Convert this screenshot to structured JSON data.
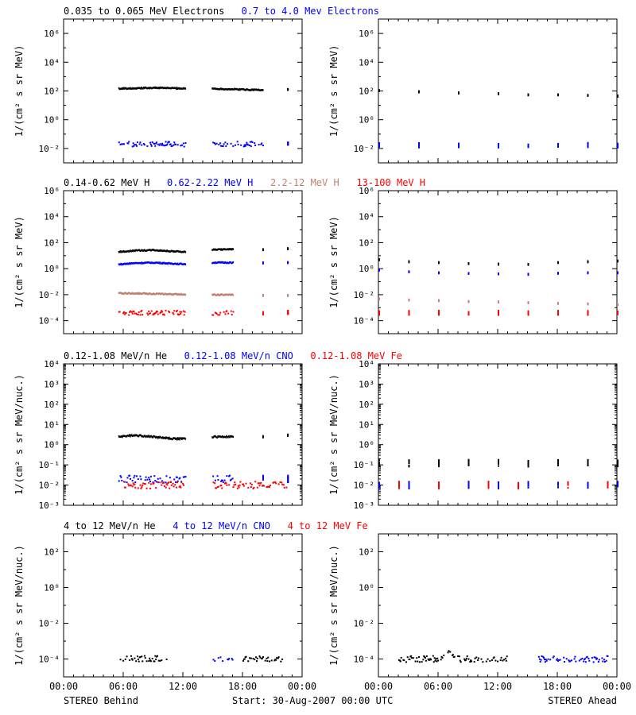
{
  "colors": {
    "black": "#000000",
    "blue": "#0000ff",
    "tan": "#c08070",
    "red": "#ff0000",
    "background": "#ffffff"
  },
  "footer": {
    "left": "STEREO Behind",
    "center": "Start: 30-Aug-2007 00:00 UTC",
    "right": "STEREO Ahead"
  },
  "x_axis": {
    "ticks": [
      0,
      6,
      12,
      18,
      24
    ],
    "tick_labels": [
      "00:00",
      "06:00",
      "12:00",
      "18:00",
      "00:00"
    ],
    "unit": "hours"
  },
  "chart_data": [
    {
      "type": "scatter",
      "row": 1,
      "spacecraft": "STEREO Behind",
      "legend": [
        {
          "text": "0.035 to 0.065 MeV Electrons",
          "color": "#000000"
        },
        {
          "text": "0.7 to 4.0 Mev Electrons",
          "color": "#0000ff"
        }
      ],
      "ylabel": "1/(cm² s sr MeV)",
      "yscale": "log",
      "ylim": [
        0.001,
        10000000
      ],
      "ytick_exponents": [
        -2,
        0,
        2,
        4,
        6
      ],
      "xlim": [
        0,
        24
      ],
      "series": [
        {
          "name": "0.035 to 0.065 MeV Electrons",
          "color": "#000000",
          "style": "line",
          "x": [
            5.5,
            7,
            9,
            11,
            12.2,
            14.9,
            16,
            18,
            20,
            22.5
          ],
          "y": [
            150,
            160,
            170,
            160,
            150,
            150,
            140,
            130,
            120,
            130
          ]
        },
        {
          "name": "0.7 to 4.0 Mev Electrons",
          "color": "#0000ff",
          "style": "dots",
          "x": [
            5.5,
            7,
            9,
            11,
            12.2,
            14.9,
            16,
            18,
            20,
            22.5
          ],
          "y": [
            0.02,
            0.02,
            0.02,
            0.02,
            0.02,
            0.02,
            0.02,
            0.02,
            0.02,
            0.02
          ]
        }
      ]
    },
    {
      "type": "scatter",
      "row": 1,
      "spacecraft": "STEREO Ahead",
      "legend": [],
      "ylabel": "1/(cm² s sr MeV)",
      "yscale": "log",
      "ylim": [
        0.001,
        10000000
      ],
      "ytick_exponents": [
        -2,
        0,
        2,
        4,
        6
      ],
      "xlim": [
        0,
        24
      ],
      "series": [
        {
          "name": "0.035 to 0.065 MeV Electrons",
          "color": "#000000",
          "style": "line",
          "x": [
            0,
            4,
            8,
            12,
            15,
            18,
            21,
            24
          ],
          "y": [
            110,
            90,
            75,
            65,
            55,
            55,
            50,
            45
          ]
        },
        {
          "name": "0.7 to 4.0 Mev Electrons",
          "color": "#0000ff",
          "style": "dots",
          "x": [
            0,
            4,
            8,
            12,
            15,
            18,
            21,
            24
          ],
          "y": [
            0.017,
            0.017,
            0.017,
            0.017,
            0.017,
            0.017,
            0.017,
            0.017
          ]
        }
      ]
    },
    {
      "type": "scatter",
      "row": 2,
      "spacecraft": "STEREO Behind",
      "legend": [
        {
          "text": "0.14-0.62 MeV H",
          "color": "#000000"
        },
        {
          "text": "0.62-2.22 MeV H",
          "color": "#0000ff"
        },
        {
          "text": "2.2-12 MeV H",
          "color": "#c08070"
        },
        {
          "text": "13-100 MeV H",
          "color": "#ff0000"
        }
      ],
      "ylabel": "1/(cm² s sr MeV)",
      "yscale": "log",
      "ylim": [
        1e-05,
        1000000
      ],
      "ytick_exponents": [
        -4,
        -2,
        0,
        2,
        4,
        6
      ],
      "xlim": [
        0,
        24
      ],
      "series": [
        {
          "name": "0.14-0.62 MeV H",
          "color": "#000000",
          "style": "line",
          "x": [
            5.5,
            7,
            9,
            11,
            12.2,
            14.9,
            17,
            20,
            22.5
          ],
          "y": [
            20,
            25,
            28,
            22,
            20,
            30,
            32,
            30,
            35
          ]
        },
        {
          "name": "0.62-2.22 MeV H",
          "color": "#0000ff",
          "style": "line",
          "x": [
            5.5,
            7,
            9,
            11,
            12.2,
            14.9,
            17,
            20,
            22.5
          ],
          "y": [
            2.2,
            2.7,
            3,
            2.5,
            2.3,
            3,
            3,
            2.8,
            3
          ]
        },
        {
          "name": "2.2-12 MeV H",
          "color": "#c08070",
          "style": "line",
          "x": [
            5.5,
            7,
            9,
            11,
            12.2,
            14.9,
            17,
            20,
            22.5
          ],
          "y": [
            0.013,
            0.013,
            0.012,
            0.011,
            0.011,
            0.01,
            0.01,
            0.009,
            0.009
          ]
        },
        {
          "name": "13-100 MeV H",
          "color": "#ff0000",
          "style": "dots",
          "x": [
            5.5,
            7,
            9,
            11,
            12.2,
            14.9,
            17,
            20,
            22.5
          ],
          "y": [
            0.0004,
            0.0004,
            0.0004,
            0.0004,
            0.0004,
            0.0004,
            0.0004,
            0.0004,
            0.0004
          ]
        }
      ]
    },
    {
      "type": "scatter",
      "row": 2,
      "spacecraft": "STEREO Ahead",
      "legend": [],
      "ylabel": "1/(cm² s sr MeV)",
      "yscale": "log",
      "ylim": [
        1e-05,
        1000000
      ],
      "ytick_exponents": [
        -4,
        -2,
        0,
        2,
        4,
        6
      ],
      "xlim": [
        0,
        24
      ],
      "series": [
        {
          "name": "0.14-0.62 MeV H",
          "color": "#000000",
          "style": "line",
          "x": [
            0,
            3,
            6,
            9,
            12,
            15,
            18,
            21,
            24
          ],
          "y": [
            5,
            3.5,
            3,
            2.5,
            2.3,
            2.2,
            3,
            3.5,
            4
          ]
        },
        {
          "name": "0.62-2.22 MeV H",
          "color": "#0000ff",
          "style": "line",
          "x": [
            0,
            3,
            6,
            9,
            12,
            15,
            18,
            21,
            24
          ],
          "y": [
            0.8,
            0.6,
            0.5,
            0.45,
            0.4,
            0.38,
            0.45,
            0.5,
            0.5
          ]
        },
        {
          "name": "2.2-12 MeV H",
          "color": "#c08070",
          "style": "line",
          "x": [
            0,
            3,
            6,
            9,
            12,
            15,
            18,
            21,
            24
          ],
          "y": [
            0.005,
            0.004,
            0.0035,
            0.003,
            0.0028,
            0.0025,
            0.0022,
            0.002,
            0.0018
          ]
        },
        {
          "name": "13-100 MeV H",
          "color": "#ff0000",
          "style": "dots",
          "x": [
            0,
            3,
            6,
            9,
            12,
            15,
            18,
            21,
            24
          ],
          "y": [
            0.0004,
            0.0004,
            0.0004,
            0.0004,
            0.0004,
            0.0004,
            0.0004,
            0.0004,
            0.0004
          ]
        }
      ]
    },
    {
      "type": "scatter",
      "row": 3,
      "spacecraft": "STEREO Behind",
      "legend": [
        {
          "text": "0.12-1.08 MeV/n He",
          "color": "#000000"
        },
        {
          "text": "0.12-1.08 MeV/n CNO",
          "color": "#0000ff"
        },
        {
          "text": "0.12-1.08 MeV Fe",
          "color": "#ff0000"
        }
      ],
      "ylabel": "1/(cm² s sr MeV/nuc.)",
      "yscale": "log",
      "ylim": [
        0.001,
        10000
      ],
      "ytick_exponents": [
        -3,
        -2,
        -1,
        0,
        1,
        2,
        3,
        4
      ],
      "xlim": [
        0,
        24
      ],
      "series": [
        {
          "name": "0.12-1.08 MeV/n He",
          "color": "#000000",
          "style": "line",
          "x": [
            5.5,
            7,
            9,
            11,
            12.2,
            14.9,
            17,
            20,
            22.5
          ],
          "y": [
            2.5,
            3,
            2.5,
            2,
            2,
            2.5,
            2.5,
            2.5,
            3
          ]
        },
        {
          "name": "0.12-1.08 MeV/n CNO",
          "color": "#0000ff",
          "style": "dots",
          "x": [
            5.5,
            7,
            9,
            11,
            12.2,
            14.9,
            17,
            20,
            22.5
          ],
          "y": [
            0.02,
            0.02,
            0.02,
            0.02,
            0.02,
            0.02,
            0.02,
            0.02,
            0.02
          ]
        },
        {
          "name": "0.12-1.08 MeV Fe",
          "color": "#ff0000",
          "style": "dots",
          "x": [
            6,
            8,
            10,
            12,
            15,
            17,
            19,
            21,
            22.5
          ],
          "y": [
            0.01,
            0.01,
            0.01,
            0.01,
            0.01,
            0.01,
            0.01,
            0.01,
            0.01
          ]
        }
      ]
    },
    {
      "type": "scatter",
      "row": 3,
      "spacecraft": "STEREO Ahead",
      "legend": [],
      "ylabel": "1/(cm² s sr MeV/nuc.)",
      "yscale": "log",
      "ylim": [
        0.001,
        10000
      ],
      "ytick_exponents": [
        -3,
        -2,
        -1,
        0,
        1,
        2,
        3,
        4
      ],
      "xlim": [
        0,
        24
      ],
      "series": [
        {
          "name": "0.12-1.08 MeV/n He",
          "color": "#000000",
          "style": "dots",
          "x": [
            0,
            3,
            6,
            9,
            12,
            15,
            18,
            21,
            24
          ],
          "y": [
            0.12,
            0.12,
            0.12,
            0.12,
            0.12,
            0.12,
            0.12,
            0.12,
            0.12
          ]
        },
        {
          "name": "0.12-1.08 MeV/n CNO",
          "color": "#0000ff",
          "style": "dots",
          "x": [
            0,
            3,
            6,
            9,
            12,
            15,
            18,
            21,
            24
          ],
          "y": [
            0.01,
            0.01,
            0.01,
            0.01,
            0.01,
            0.01,
            0.01,
            0.01,
            0.01
          ]
        },
        {
          "name": "0.12-1.08 MeV Fe",
          "color": "#ff0000",
          "style": "dots",
          "x": [
            2,
            6,
            11,
            14,
            19,
            23
          ],
          "y": [
            0.01,
            0.01,
            0.01,
            0.01,
            0.01,
            0.01
          ]
        }
      ]
    },
    {
      "type": "scatter",
      "row": 4,
      "spacecraft": "STEREO Behind",
      "legend": [
        {
          "text": "4 to 12 MeV/n He",
          "color": "#000000"
        },
        {
          "text": "4 to 12 MeV/n CNO",
          "color": "#0000ff"
        },
        {
          "text": "4 to 12 MeV Fe",
          "color": "#ff0000"
        }
      ],
      "ylabel": "1/(cm² s sr MeV/nuc.)",
      "yscale": "log",
      "ylim": [
        1e-05,
        1000
      ],
      "ytick_exponents": [
        -4,
        -2,
        0,
        2
      ],
      "xlim": [
        0,
        24
      ],
      "series": [
        {
          "name": "4 to 12 MeV/n He",
          "color": "#000000",
          "style": "dots",
          "x": [
            5.5,
            6.5,
            7.5,
            8.5,
            9.5,
            10.5,
            18,
            19,
            20,
            21,
            22
          ],
          "y": [
            0.0001,
            0.0001,
            0.0001,
            0.0001,
            0.0001,
            0.0001,
            0.0001,
            0.0001,
            0.0001,
            0.0001,
            0.0001
          ]
        },
        {
          "name": "4 to 12 MeV/n CNO",
          "color": "#0000ff",
          "style": "dots",
          "x": [
            15,
            16,
            17
          ],
          "y": [
            0.0001,
            0.0001,
            0.0001
          ]
        }
      ]
    },
    {
      "type": "scatter",
      "row": 4,
      "spacecraft": "STEREO Ahead",
      "legend": [],
      "ylabel": "1/(cm² s sr MeV/nuc.)",
      "yscale": "log",
      "ylim": [
        1e-05,
        1000
      ],
      "ytick_exponents": [
        -4,
        -2,
        0,
        2
      ],
      "xlim": [
        0,
        24
      ],
      "series": [
        {
          "name": "4 to 12 MeV/n He",
          "color": "#000000",
          "style": "dots",
          "x": [
            2,
            3,
            4,
            5,
            6,
            7,
            8,
            9,
            10,
            11,
            13
          ],
          "y": [
            0.0001,
            0.0001,
            0.0001,
            0.0001,
            0.0001,
            0.0002,
            0.0001,
            0.0001,
            0.0001,
            0.0001,
            0.0001
          ]
        },
        {
          "name": "4 to 12 MeV/n CNO",
          "color": "#0000ff",
          "style": "dots",
          "x": [
            16,
            17,
            18,
            19,
            20,
            22,
            23
          ],
          "y": [
            0.0001,
            0.0001,
            0.0001,
            0.0001,
            0.0001,
            0.0001,
            0.0001
          ]
        }
      ]
    }
  ]
}
